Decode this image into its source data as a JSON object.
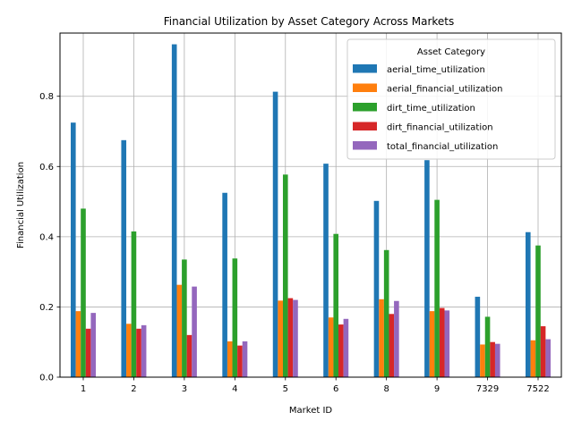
{
  "chart_data": {
    "type": "bar",
    "title": "Financial Utilization by Asset Category Across Markets",
    "xlabel": "Market ID",
    "ylabel": "Financial Utilization",
    "categories": [
      "1",
      "2",
      "3",
      "4",
      "5",
      "6",
      "8",
      "9",
      "7329",
      "7522"
    ],
    "ylim": [
      0,
      0.98
    ],
    "yticks": [
      0.0,
      0.2,
      0.4,
      0.6,
      0.8
    ],
    "ytick_labels": [
      "0.0",
      "0.2",
      "0.4",
      "0.6",
      "0.8"
    ],
    "grid": true,
    "legend": {
      "title": "Asset Category",
      "placement": "top-right"
    },
    "series": [
      {
        "name": "aerial_time_utilization",
        "color": "#1f77b4",
        "values": [
          0.725,
          0.675,
          0.948,
          0.525,
          0.813,
          0.608,
          0.502,
          0.618,
          0.229,
          0.413
        ]
      },
      {
        "name": "aerial_financial_utilization",
        "color": "#ff7f0e",
        "values": [
          0.188,
          0.152,
          0.263,
          0.102,
          0.218,
          0.17,
          0.222,
          0.188,
          0.093,
          0.105
        ]
      },
      {
        "name": "dirt_time_utilization",
        "color": "#2ca02c",
        "values": [
          0.48,
          0.415,
          0.335,
          0.338,
          0.577,
          0.408,
          0.362,
          0.505,
          0.172,
          0.375
        ]
      },
      {
        "name": "dirt_financial_utilization",
        "color": "#d62728",
        "values": [
          0.138,
          0.138,
          0.12,
          0.09,
          0.225,
          0.15,
          0.18,
          0.197,
          0.1,
          0.145
        ]
      },
      {
        "name": "total_financial_utilization",
        "color": "#9467bd",
        "values": [
          0.183,
          0.148,
          0.258,
          0.102,
          0.22,
          0.166,
          0.217,
          0.19,
          0.095,
          0.108
        ]
      }
    ]
  }
}
